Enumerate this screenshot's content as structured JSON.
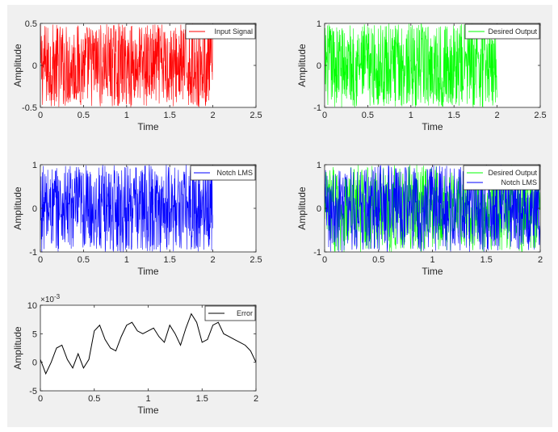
{
  "chart_data": [
    {
      "type": "line",
      "title": "",
      "xlabel": "Time",
      "ylabel": "Amplitude",
      "xlim": [
        0,
        2.5
      ],
      "ylim": [
        -0.5,
        0.5
      ],
      "xticks": [
        0,
        0.5,
        1,
        1.5,
        2,
        2.5
      ],
      "yticks": [
        -0.5,
        0,
        0.5
      ],
      "xtick_labels": [
        "0",
        "0.5",
        "1",
        "1.5",
        "2",
        "2.5"
      ],
      "ytick_labels": [
        "-0.5",
        "0",
        "0.5"
      ],
      "legend_position": "top-right",
      "grid": false,
      "series": [
        {
          "name": "Input Signal",
          "color": "#ff0000",
          "x_range": [
            0,
            2
          ],
          "amplitude": 0.5,
          "style": "uniform-noise"
        }
      ]
    },
    {
      "type": "line",
      "title": "",
      "xlabel": "Time",
      "ylabel": "Amplitude",
      "xlim": [
        0,
        2.5
      ],
      "ylim": [
        -1,
        1
      ],
      "xticks": [
        0,
        0.5,
        1,
        1.5,
        2,
        2.5
      ],
      "yticks": [
        -1,
        0,
        1
      ],
      "xtick_labels": [
        "0",
        "0.5",
        "1",
        "1.5",
        "2",
        "2.5"
      ],
      "ytick_labels": [
        "-1",
        "0",
        "1"
      ],
      "legend_position": "top-right",
      "grid": false,
      "series": [
        {
          "name": "Desired Output",
          "color": "#00ff00",
          "x_range": [
            0,
            2
          ],
          "amplitude": 1,
          "style": "uniform-noise"
        }
      ]
    },
    {
      "type": "line",
      "title": "",
      "xlabel": "Time",
      "ylabel": "Amplitude",
      "xlim": [
        0,
        2.5
      ],
      "ylim": [
        -1,
        1
      ],
      "xticks": [
        0,
        0.5,
        1,
        1.5,
        2,
        2.5
      ],
      "yticks": [
        -1,
        0,
        1
      ],
      "xtick_labels": [
        "0",
        "0.5",
        "1",
        "1.5",
        "2",
        "2.5"
      ],
      "ytick_labels": [
        "-1",
        "0",
        "1"
      ],
      "legend_position": "top-right",
      "grid": false,
      "series": [
        {
          "name": "Notch LMS",
          "color": "#0000ff",
          "x_range": [
            0,
            2
          ],
          "amplitude": 1,
          "style": "uniform-noise"
        }
      ]
    },
    {
      "type": "line",
      "title": "",
      "xlabel": "Time",
      "ylabel": "Amplitude",
      "xlim": [
        0,
        2
      ],
      "ylim": [
        -1,
        1
      ],
      "xticks": [
        0,
        0.5,
        1,
        1.5,
        2
      ],
      "yticks": [
        -1,
        0,
        1
      ],
      "xtick_labels": [
        "0",
        "0.5",
        "1",
        "1.5",
        "2"
      ],
      "ytick_labels": [
        "-1",
        "0",
        "1"
      ],
      "legend_position": "top-right",
      "grid": false,
      "series": [
        {
          "name": "Desired Output",
          "color": "#00ff00",
          "x_range": [
            0,
            2
          ],
          "amplitude": 1,
          "style": "uniform-noise"
        },
        {
          "name": "Notch LMS",
          "color": "#0000ff",
          "x_range": [
            0,
            2
          ],
          "amplitude": 1,
          "style": "uniform-noise"
        }
      ]
    },
    {
      "type": "line",
      "title": "",
      "xlabel": "Time",
      "ylabel": "Amplitude",
      "xlim": [
        0,
        2
      ],
      "ylim": [
        -5,
        10
      ],
      "xticks": [
        0,
        0.5,
        1,
        1.5,
        2
      ],
      "yticks": [
        -5,
        0,
        5,
        10
      ],
      "xtick_labels": [
        "0",
        "0.5",
        "1",
        "1.5",
        "2"
      ],
      "ytick_labels": [
        "-5",
        "0",
        "5",
        "10"
      ],
      "y_exponent_base": "×10",
      "y_exponent_power": "-3",
      "legend_position": "top-right",
      "grid": false,
      "series": [
        {
          "name": "Error",
          "color": "#000000",
          "x": [
            0,
            0.05,
            0.1,
            0.15,
            0.2,
            0.25,
            0.3,
            0.35,
            0.4,
            0.45,
            0.5,
            0.55,
            0.6,
            0.65,
            0.7,
            0.75,
            0.8,
            0.85,
            0.9,
            0.95,
            1.0,
            1.05,
            1.1,
            1.15,
            1.2,
            1.25,
            1.3,
            1.35,
            1.4,
            1.45,
            1.5,
            1.55,
            1.6,
            1.65,
            1.7,
            1.75,
            1.8,
            1.85,
            1.9,
            1.95,
            2.0
          ],
          "y": [
            0.5,
            -2,
            0,
            2.5,
            3,
            0.5,
            -1,
            1.5,
            -1,
            0.5,
            5.5,
            6.5,
            4,
            2.5,
            2,
            4.5,
            6.5,
            7,
            5.5,
            5,
            5.5,
            6,
            4.5,
            3.5,
            6.5,
            5,
            3,
            6,
            8.5,
            7,
            3.5,
            4,
            6.5,
            7,
            5,
            4.5,
            4,
            3.5,
            3,
            2,
            0
          ]
        }
      ]
    }
  ]
}
